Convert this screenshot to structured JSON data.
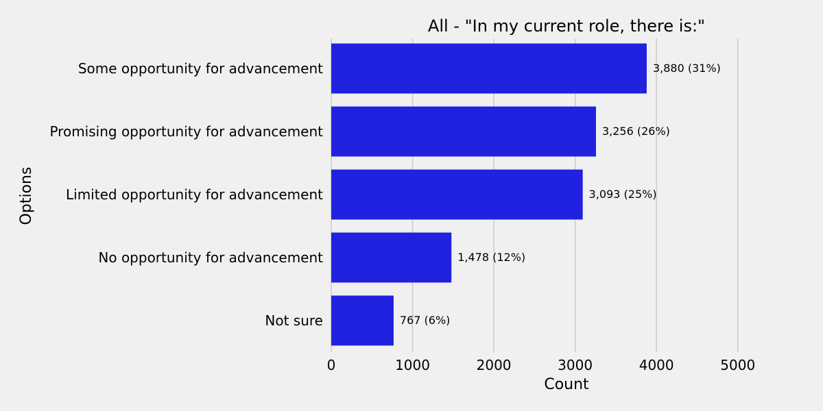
{
  "chart_data": {
    "type": "bar",
    "orientation": "horizontal",
    "title": "All - \"In my current role, there is:\"",
    "xlabel": "Count",
    "ylabel": "Options",
    "categories": [
      "Some opportunity for advancement",
      "Promising opportunity for advancement",
      "Limited opportunity for advancement",
      "No opportunity for advancement",
      "Not sure"
    ],
    "values": [
      3880,
      3256,
      3093,
      1478,
      767
    ],
    "data_labels": [
      "3,880 (31%)",
      "3,256 (26%)",
      "3,093 (25%)",
      "1,478 (12%)",
      "767 (6%)"
    ],
    "xlim": [
      0,
      5500
    ],
    "xticks": [
      0,
      1000,
      2000,
      3000,
      4000,
      5000
    ],
    "xtick_labels": [
      "0",
      "1000",
      "2000",
      "3000",
      "4000",
      "5000"
    ],
    "grid": "vertical",
    "legend": "none",
    "colors": {
      "bar": "#2121e0",
      "background": "#f0f0f0",
      "grid": "#cbcbcb",
      "text": "#000000"
    }
  }
}
